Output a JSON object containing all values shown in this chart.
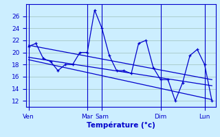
{
  "background_color": "#cceeff",
  "grid_color": "#aacccc",
  "line_color": "#0000cc",
  "title": "Température (°c)",
  "ylim": [
    11,
    28
  ],
  "yticks": [
    12,
    14,
    16,
    18,
    20,
    22,
    24,
    26
  ],
  "day_labels": [
    "Ven",
    "Mar",
    "Sam",
    "Dim",
    "Lun"
  ],
  "day_positions": [
    0,
    8,
    10,
    18,
    24
  ],
  "series1_x": [
    0,
    1,
    2,
    3,
    4,
    5,
    6,
    7,
    8,
    9,
    10,
    11,
    12,
    13,
    14,
    15,
    16,
    17,
    18,
    19,
    20,
    21,
    22,
    23,
    24,
    25
  ],
  "series1_y": [
    21,
    21.5,
    19,
    18.5,
    17,
    18,
    18,
    20,
    20,
    27,
    24,
    19.5,
    17,
    17,
    16.5,
    21.5,
    22,
    17.5,
    15.5,
    15.5,
    12,
    15,
    19.5,
    20.5,
    18,
    12
  ],
  "trend1_x": [
    0,
    25
  ],
  "trend1_y": [
    21.2,
    15.5
  ],
  "trend2_x": [
    0,
    25
  ],
  "trend2_y": [
    19.2,
    14.5
  ],
  "trend3_x": [
    0,
    25
  ],
  "trend3_y": [
    18.8,
    12.2
  ],
  "xlim": [
    -0.3,
    25.5
  ]
}
